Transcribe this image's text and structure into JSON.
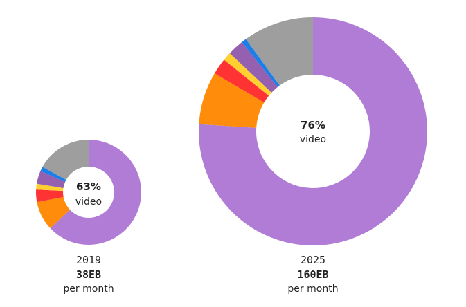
{
  "chart_data": [
    {
      "type": "pie",
      "year": "2019",
      "total": "38EB",
      "unit": "per month",
      "center_value": "63%",
      "center_label": "video",
      "slices": [
        {
          "value": 63,
          "color": "#b07cd6"
        },
        {
          "value": 9,
          "color": "#ff8c0a"
        },
        {
          "value": 3.8,
          "color": "#ff3333"
        },
        {
          "value": 1.8,
          "color": "#ffd030"
        },
        {
          "value": 4,
          "color": "#9560b0"
        },
        {
          "value": 1.4,
          "color": "#1a7fe8"
        },
        {
          "value": 17,
          "color": "#9e9e9e"
        }
      ]
    },
    {
      "type": "pie",
      "year": "2025",
      "total": "160EB",
      "unit": "per month",
      "center_value": "76%",
      "center_label": "video",
      "slices": [
        {
          "value": 76,
          "color": "#b07cd6"
        },
        {
          "value": 7.5,
          "color": "#ff8c0a"
        },
        {
          "value": 2.3,
          "color": "#ff3333"
        },
        {
          "value": 1.2,
          "color": "#ffd030"
        },
        {
          "value": 2.3,
          "color": "#9560b0"
        },
        {
          "value": 0.7,
          "color": "#1a7fe8"
        },
        {
          "value": 10,
          "color": "#9e9e9e"
        }
      ]
    }
  ]
}
